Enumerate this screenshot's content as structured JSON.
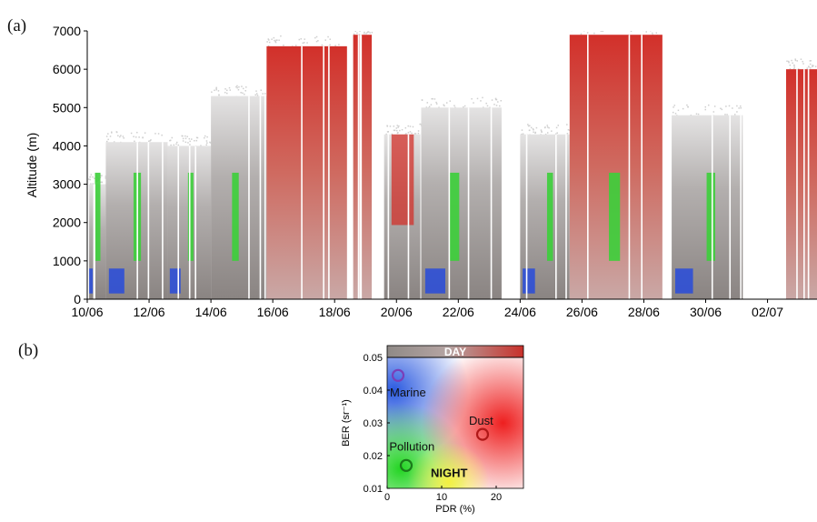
{
  "panel_a_label": "(a)",
  "panel_b_label": "(b)",
  "chart_data": [
    {
      "type": "heatmap",
      "panel": "(a)",
      "ylabel": "Altitude (m)",
      "ylim": [
        0,
        7000
      ],
      "yticks": [
        0,
        1000,
        2000,
        3000,
        4000,
        5000,
        6000,
        7000
      ],
      "xticks": [
        "10/06",
        "12/06",
        "14/06",
        "16/06",
        "18/06",
        "20/06",
        "22/06",
        "24/06",
        "26/06",
        "28/06",
        "30/06",
        "02/07"
      ],
      "xrange_days": [
        0,
        23.6
      ],
      "colors": {
        "dust": "#d2302a",
        "marine": "#2d4fd6",
        "pollution": "#3ccf3a",
        "gray_dark": "#7f7a77",
        "gray_light": "#d6d4d4"
      },
      "profiles": [
        {
          "start": 0.0,
          "end": 0.6,
          "top": 3000,
          "class": "mixed"
        },
        {
          "start": 0.6,
          "end": 2.6,
          "top": 4100,
          "class": "gray-green-blue"
        },
        {
          "start": 2.6,
          "end": 4.0,
          "top": 4000,
          "class": "gray-green-blue"
        },
        {
          "start": 4.0,
          "end": 5.8,
          "top": 5300,
          "class": "gray-green"
        },
        {
          "start": 5.8,
          "end": 8.4,
          "top": 6600,
          "class": "dust"
        },
        {
          "start": 8.6,
          "end": 9.2,
          "top": 6900,
          "class": "dust"
        },
        {
          "start": 9.6,
          "end": 10.8,
          "top": 4300,
          "class": "gray-dust"
        },
        {
          "start": 10.8,
          "end": 13.4,
          "top": 5000,
          "class": "gray-green-blue"
        },
        {
          "start": 14.0,
          "end": 15.6,
          "top": 4300,
          "class": "gray-green-blue"
        },
        {
          "start": 15.6,
          "end": 18.6,
          "top": 6900,
          "class": "dust-green"
        },
        {
          "start": 18.9,
          "end": 21.2,
          "top": 4800,
          "class": "gray-green-blue"
        },
        {
          "start": 22.6,
          "end": 23.6,
          "top": 6000,
          "class": "dust"
        }
      ]
    },
    {
      "type": "heatmap",
      "panel": "(b)",
      "xlabel": "PDR (%)",
      "ylabel": "BER (sr⁻¹)",
      "xlim": [
        0,
        25
      ],
      "ylim": [
        0.01,
        0.05
      ],
      "xticks": [
        0,
        10,
        20
      ],
      "yticks": [
        0.01,
        0.02,
        0.03,
        0.04,
        0.05
      ],
      "colorbar_label": "DAY",
      "night_label": "NIGHT",
      "points": [
        {
          "name": "Marine",
          "pdr": 2.0,
          "ber": 0.0445,
          "color": "#7a3fb8"
        },
        {
          "name": "Pollution",
          "pdr": 3.5,
          "ber": 0.017,
          "color": "#1a7a1a"
        },
        {
          "name": "Dust",
          "pdr": 17.5,
          "ber": 0.0265,
          "color": "#b01818"
        }
      ]
    }
  ]
}
